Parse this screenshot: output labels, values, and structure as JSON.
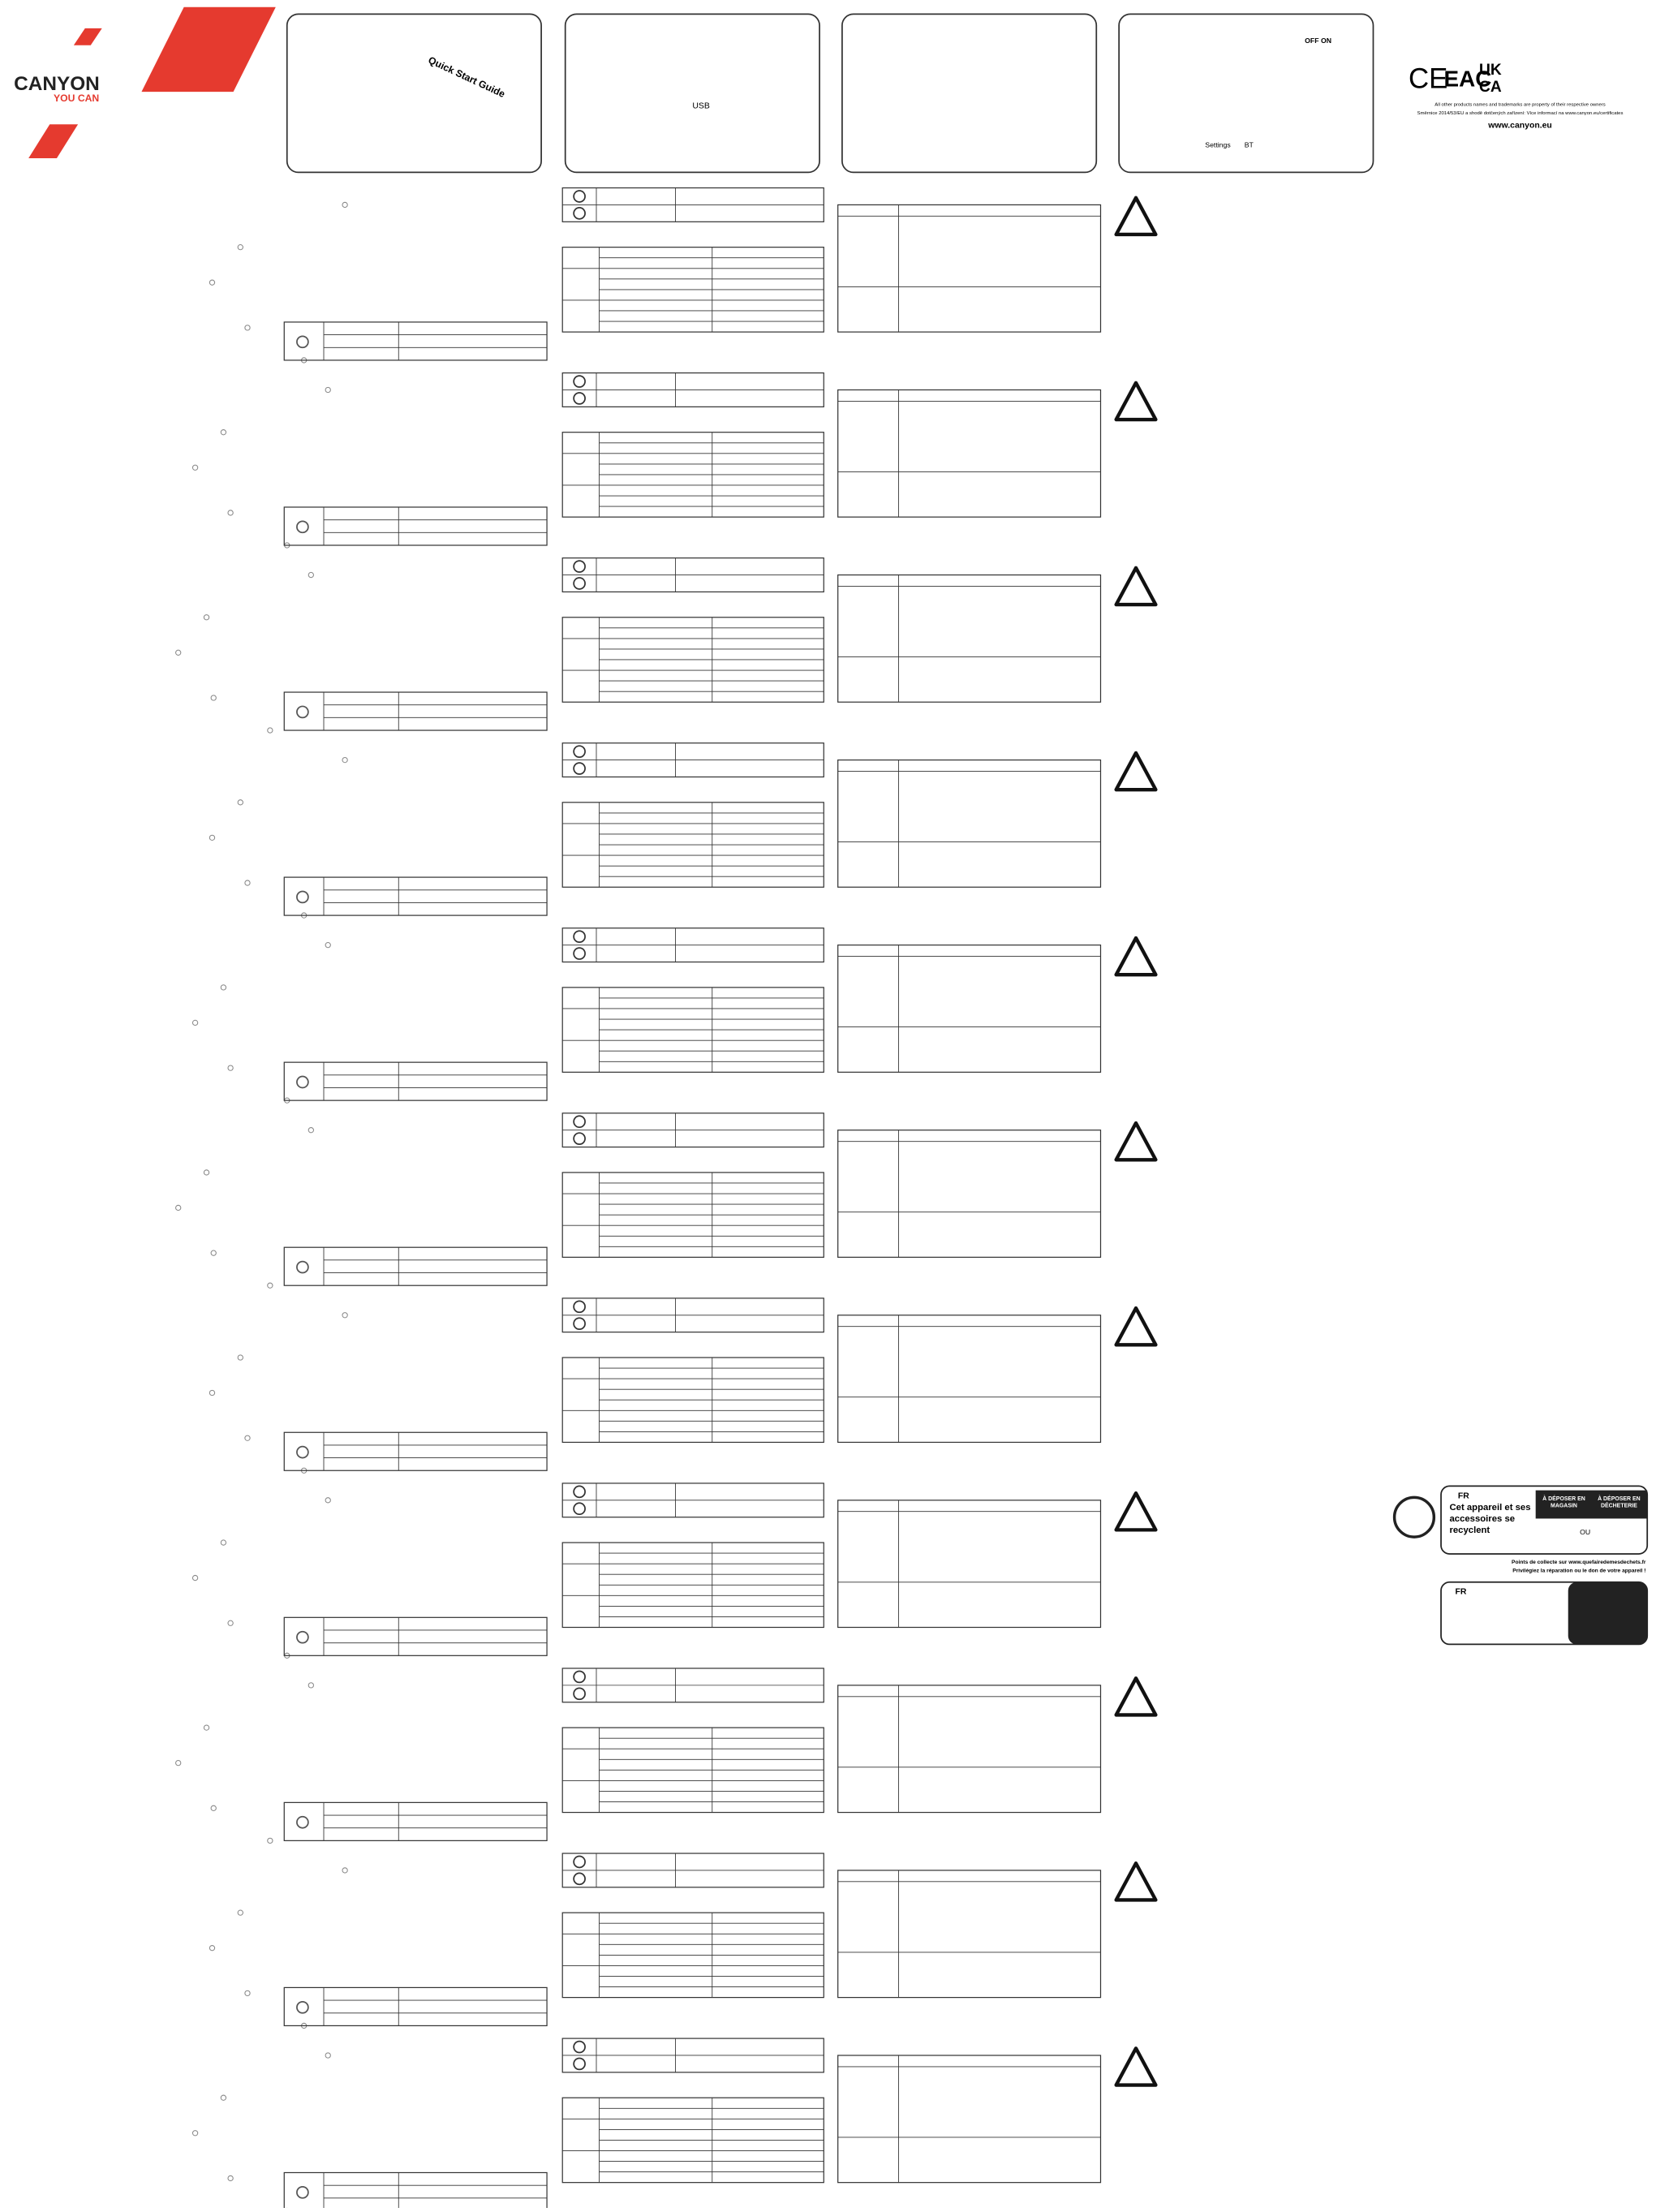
{
  "logo": {
    "brand": "CANYON",
    "tagline": "YOU CAN"
  },
  "panels": {
    "guide": "Quick Start Guide",
    "usb": "USB",
    "switch": "OFF ON",
    "settings": "Settings",
    "bt": "BT"
  },
  "legal": {
    "marks": [
      "CE",
      "EAC",
      "UK",
      "CA"
    ],
    "trademarks": "All other products names and trademarks are property of their respective owners",
    "directive": "Směrnice 2014/53/EU a shodě dotčených zařízení: Více informací na www.canyon.eu/certificates",
    "website": "www.canyon.eu"
  },
  "recycling": {
    "country": "FR",
    "headline": "Cet appareil et ses accessoires se recyclent",
    "store": "À DÉPOSER EN MAGASIN",
    "dump": "À DÉPOSER EN DÉCHETERIE",
    "or": "OU",
    "collect": "Points de collecte sur www.quefairedemesdechets.fr",
    "repair": "Privilégiez la réparation ou le don de votre appareil !",
    "country2": "FR"
  }
}
